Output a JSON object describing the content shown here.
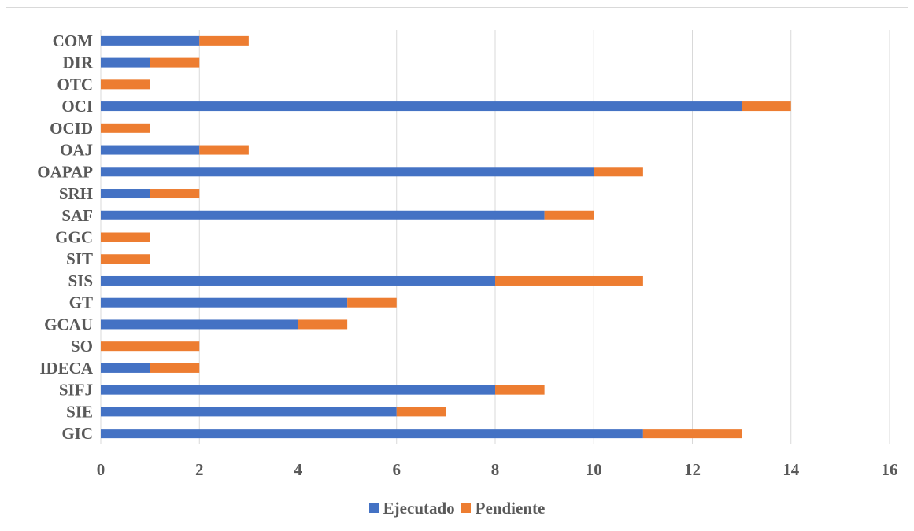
{
  "chart_data": {
    "type": "bar",
    "orientation": "horizontal",
    "stacked": true,
    "categories": [
      "COM",
      "DIR",
      "OTC",
      "OCI",
      "OCID",
      "OAJ",
      "OAPAP",
      "SRH",
      "SAF",
      "GGC",
      "SIT",
      "SIS",
      "GT",
      "GCAU",
      "SO",
      "IDECA",
      "SIFJ",
      "SIE",
      "GIC"
    ],
    "series": [
      {
        "name": "Ejecutado",
        "color": "#4472c4",
        "values": [
          2,
          1,
          0,
          13,
          0,
          2,
          10,
          1,
          9,
          0,
          0,
          8,
          5,
          4,
          0,
          1,
          8,
          6,
          11
        ]
      },
      {
        "name": "Pendiente",
        "color": "#ed7d31",
        "values": [
          1,
          1,
          1,
          1,
          1,
          1,
          1,
          1,
          1,
          1,
          1,
          3,
          1,
          1,
          2,
          1,
          1,
          1,
          2
        ]
      }
    ],
    "xlim": [
      0,
      16
    ],
    "xticks": [
      "0",
      "2",
      "4",
      "6",
      "8",
      "10",
      "12",
      "14",
      "16"
    ],
    "title": "",
    "xlabel": "",
    "ylabel": "",
    "grid": "vertical",
    "legend": "bottom"
  }
}
